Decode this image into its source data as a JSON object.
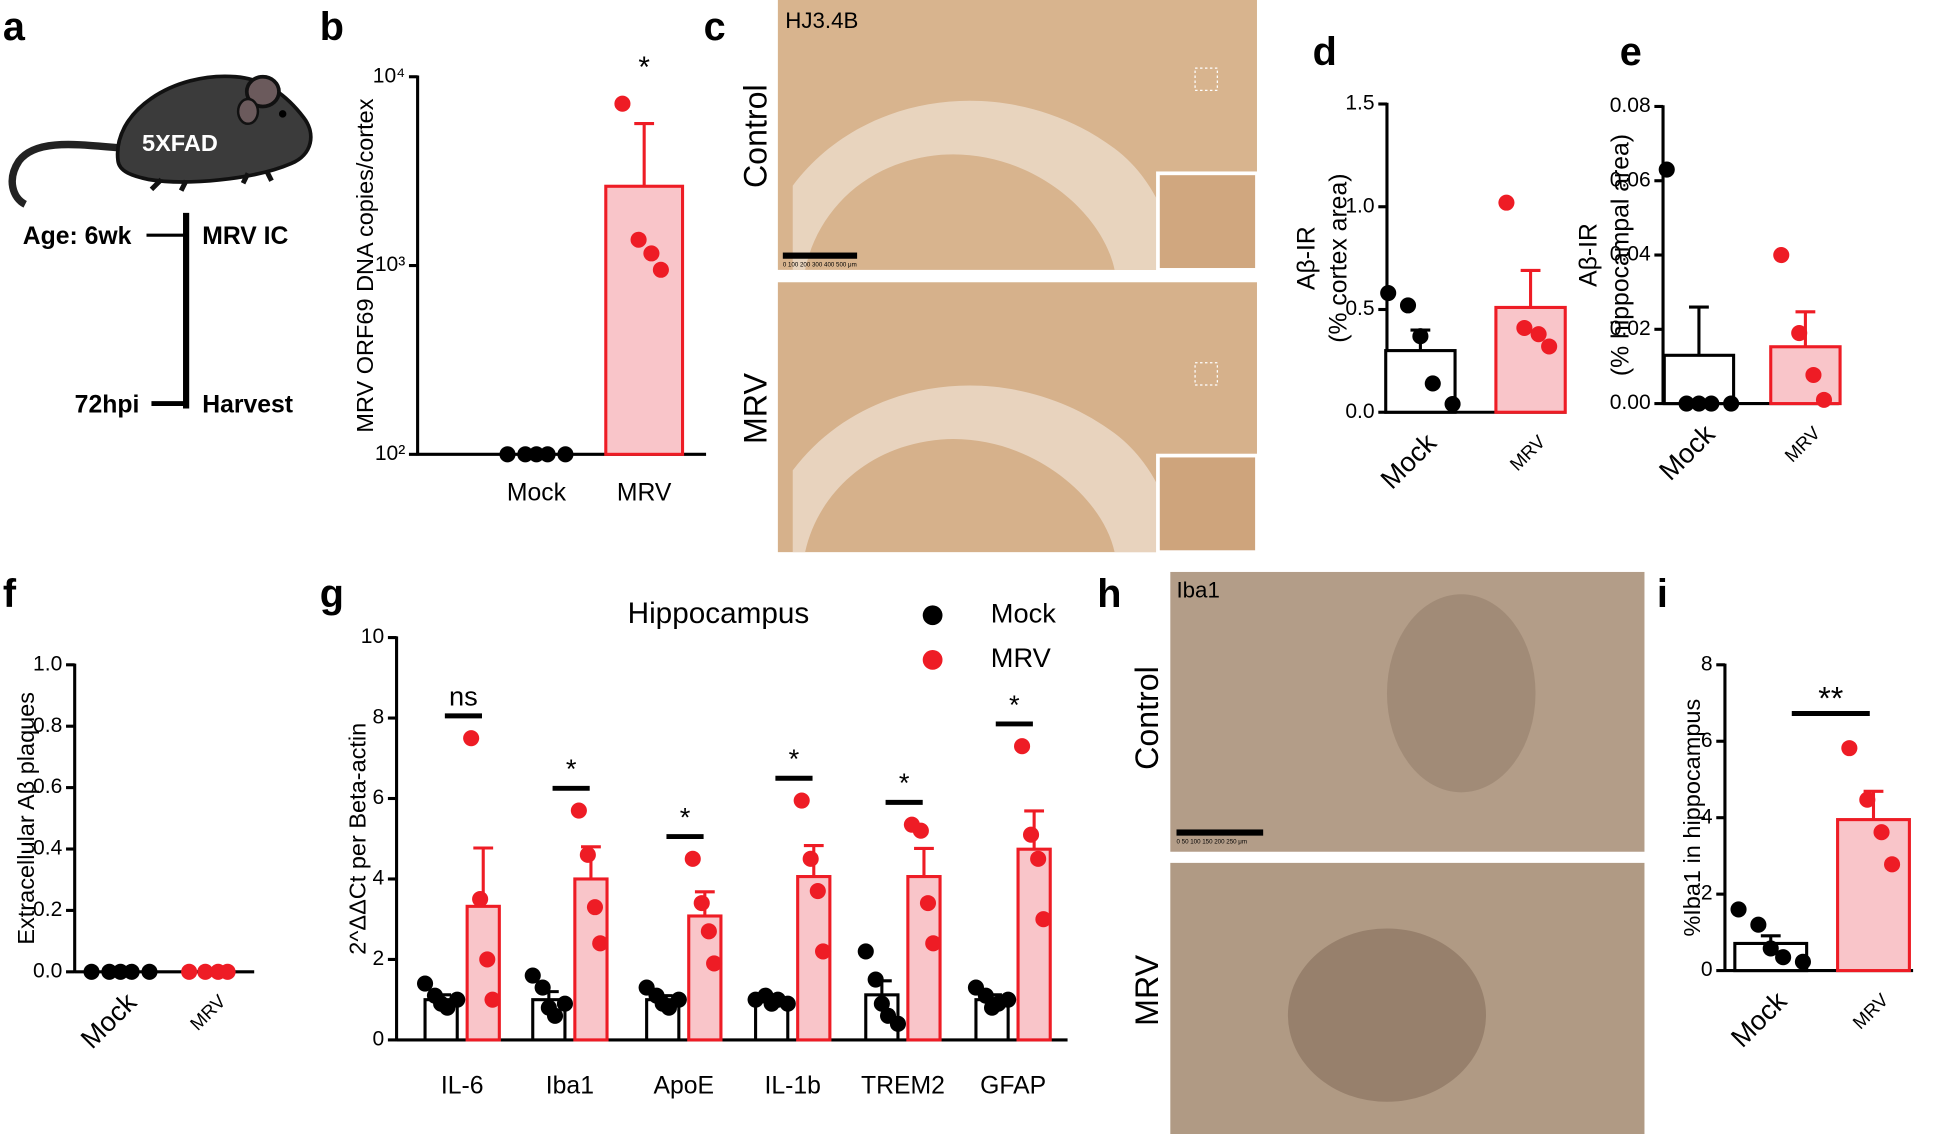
{
  "panel_labels": [
    "a",
    "b",
    "c",
    "d",
    "e",
    "f",
    "g",
    "h",
    "i"
  ],
  "diagram": {
    "strain": "5XFAD",
    "age": "Age: 6wk",
    "injection": "MRV IC",
    "timepoint": "72hpi",
    "endpoint": "Harvest"
  },
  "images": [
    {
      "stain": "HJ3.4B",
      "rows": [
        "Control",
        "MRV"
      ],
      "scale": "0 100 200 300 400 500 μm"
    },
    {
      "stain": "Iba1",
      "rows": [
        "Control",
        "MRV"
      ],
      "scale": "0 50 100 150 200 250 μm"
    }
  ],
  "chart_data": [
    {
      "type": "bar",
      "ylabel": "MRV ORF69 DNA copies/cortex",
      "log": true,
      "categories": [
        "Mock",
        "MRV"
      ],
      "values": [
        100,
        2630
      ],
      "errors": [
        0,
        3020
      ],
      "points": [
        [
          100,
          100,
          100,
          100,
          100
        ],
        [
          7200,
          1370,
          1160,
          950
        ]
      ],
      "colors": [
        "#000000",
        "#ee1c25"
      ],
      "fills": [
        "#ffffff",
        "#f9c5c9"
      ],
      "ylim": [
        100,
        10000
      ],
      "yticks": [
        {
          "value": 100,
          "label": "10²"
        },
        {
          "value": 1000,
          "label": "10³"
        },
        {
          "value": 10000,
          "label": "10⁴"
        }
      ],
      "annotation": "*"
    },
    {
      "type": "bar",
      "ylabel": [
        "Aβ-IR",
        "(% cortex area)"
      ],
      "categories": [
        "Mock",
        "MRV"
      ],
      "values": [
        0.3,
        0.51
      ],
      "errors": [
        0.1,
        0.18
      ],
      "points": [
        [
          0.58,
          0.52,
          0.37,
          0.14,
          0.04
        ],
        [
          1.02,
          0.41,
          0.38,
          0.32
        ]
      ],
      "colors": [
        "#000000",
        "#ee1c25"
      ],
      "fills": [
        "#ffffff",
        "#f9c5c9"
      ],
      "ylim": [
        0,
        1.5
      ],
      "yticks": [
        {
          "value": 0,
          "label": "0.0"
        },
        0.5,
        {
          "value": 1,
          "label": "1.0"
        },
        1.5
      ]
    },
    {
      "type": "bar",
      "ylabel": [
        "Aβ-IR",
        "(% hippocampal area)"
      ],
      "categories": [
        "Mock",
        "MRV"
      ],
      "values": [
        0.013,
        0.0153
      ],
      "errors": [
        0.013,
        0.0094
      ],
      "points": [
        [
          0.063,
          0,
          0,
          0,
          0
        ],
        [
          0.04,
          0.019,
          0.0077,
          0.001
        ]
      ],
      "colors": [
        "#000000",
        "#ee1c25"
      ],
      "fills": [
        "#ffffff",
        "#f9c5c9"
      ],
      "ylim": [
        0,
        0.08
      ],
      "yticks": [
        {
          "value": 0,
          "label": "0.00"
        },
        {
          "value": 0.02,
          "label": "0.02"
        },
        {
          "value": 0.04,
          "label": "0.04"
        },
        {
          "value": 0.06,
          "label": "0.06"
        },
        {
          "value": 0.08,
          "label": "0.08"
        }
      ]
    },
    {
      "type": "bar",
      "ylabel": "Extracellular Aβ plaques",
      "categories": [
        "Mock",
        "MRV"
      ],
      "values": [
        0,
        0
      ],
      "errors": [
        0,
        0
      ],
      "points": [
        [
          0,
          0,
          0,
          0,
          0
        ],
        [
          0,
          0,
          0,
          0
        ]
      ],
      "colors": [
        "#000000",
        "#ee1c25"
      ],
      "fills": [
        "#ffffff",
        "#f9c5c9"
      ],
      "ylim": [
        0,
        1
      ],
      "yticks": [
        {
          "value": 0,
          "label": "0.0"
        },
        0.2,
        0.4,
        0.6,
        0.8,
        {
          "value": 1,
          "label": "1.0"
        }
      ]
    },
    {
      "type": "grouped-bar",
      "title": "Hippocampus",
      "ylabel": "2^ΔΔCt per Beta-actin",
      "categories": [
        "IL-6",
        "Iba1",
        "ApoE",
        "IL-1b",
        "TREM2",
        "GFAP"
      ],
      "legend": "upper right",
      "series": [
        {
          "name": "Mock",
          "color": "#000000",
          "fill": "#ffffff",
          "values": [
            1.0,
            1.0,
            1.0,
            1.0,
            1.12,
            1.0
          ],
          "errors": [
            0.12,
            0.2,
            0.1,
            0.06,
            0.35,
            0.12
          ],
          "points": [
            [
              1.4,
              1.1,
              0.9,
              0.8,
              1.0
            ],
            [
              1.6,
              1.3,
              0.8,
              0.6,
              0.9
            ],
            [
              1.3,
              1.1,
              0.9,
              0.8,
              1.0
            ],
            [
              1.0,
              1.1,
              0.9,
              1.0,
              0.9
            ],
            [
              2.2,
              1.5,
              0.9,
              0.6,
              0.4
            ],
            [
              1.3,
              1.1,
              0.8,
              0.9,
              1.0
            ]
          ]
        },
        {
          "name": "MRV",
          "color": "#ee1c25",
          "fill": "#f9c5c9",
          "values": [
            3.32,
            4.0,
            3.08,
            4.06,
            4.06,
            4.74
          ],
          "errors": [
            1.45,
            0.8,
            0.6,
            0.77,
            0.7,
            0.95
          ],
          "points": [
            [
              7.5,
              3.5,
              2.0,
              1.0
            ],
            [
              5.7,
              4.6,
              3.3,
              2.4
            ],
            [
              4.5,
              3.4,
              2.7,
              1.9
            ],
            [
              5.95,
              4.5,
              3.7,
              2.2
            ],
            [
              5.35,
              5.2,
              3.4,
              2.4
            ],
            [
              7.3,
              5.1,
              4.5,
              3.0
            ]
          ]
        }
      ],
      "annotations": [
        "ns",
        "*",
        "*",
        "*",
        "*",
        "*"
      ],
      "ylim": [
        0,
        10
      ],
      "yticks": [
        0,
        2,
        4,
        6,
        8,
        10
      ]
    },
    {
      "type": "bar",
      "ylabel": "%Iba1 in hippocampus",
      "categories": [
        "Mock",
        "MRV"
      ],
      "values": [
        0.71,
        3.95
      ],
      "errors": [
        0.2,
        0.74
      ],
      "points": [
        [
          1.6,
          1.2,
          0.58,
          0.35,
          0.23
        ],
        [
          5.82,
          4.47,
          3.62,
          2.78
        ]
      ],
      "colors": [
        "#000000",
        "#ee1c25"
      ],
      "fills": [
        "#ffffff",
        "#f9c5c9"
      ],
      "ylim": [
        0,
        8
      ],
      "yticks": [
        0,
        2,
        4,
        6,
        8
      ],
      "annotation": "**",
      "annotation_line": true
    }
  ]
}
